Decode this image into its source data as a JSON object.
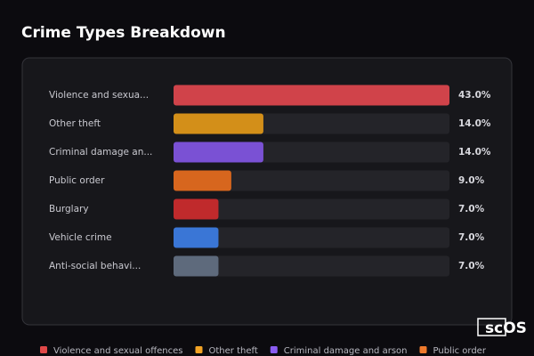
{
  "chart_data": {
    "type": "bar",
    "orientation": "horizontal",
    "title": "Crime Types Breakdown",
    "categories": [
      "Violence and sexua...",
      "Other theft",
      "Criminal damage an...",
      "Public order",
      "Burglary",
      "Vehicle crime",
      "Anti-social behavi..."
    ],
    "values": [
      43,
      14,
      14,
      9,
      7,
      7,
      7
    ],
    "value_labels": [
      "43.0%",
      "14.0%",
      "14.0%",
      "9.0%",
      "7.0%",
      "7.0%",
      "7.0%"
    ],
    "colors": [
      "#d0434a",
      "#d38f19",
      "#7a51d4",
      "#d7661e",
      "#c02a2c",
      "#3a76d6",
      "#5e6a7c"
    ],
    "xlim": [
      0,
      43
    ],
    "legend": [
      {
        "name": "Violence and sexual offences",
        "color": "#e04848"
      },
      {
        "name": "Other theft",
        "color": "#f2a325"
      },
      {
        "name": "Criminal damage and arson",
        "color": "#8a5cf2"
      },
      {
        "name": "Public order",
        "color": "#ef7a2c"
      }
    ]
  },
  "logo": "scOS"
}
